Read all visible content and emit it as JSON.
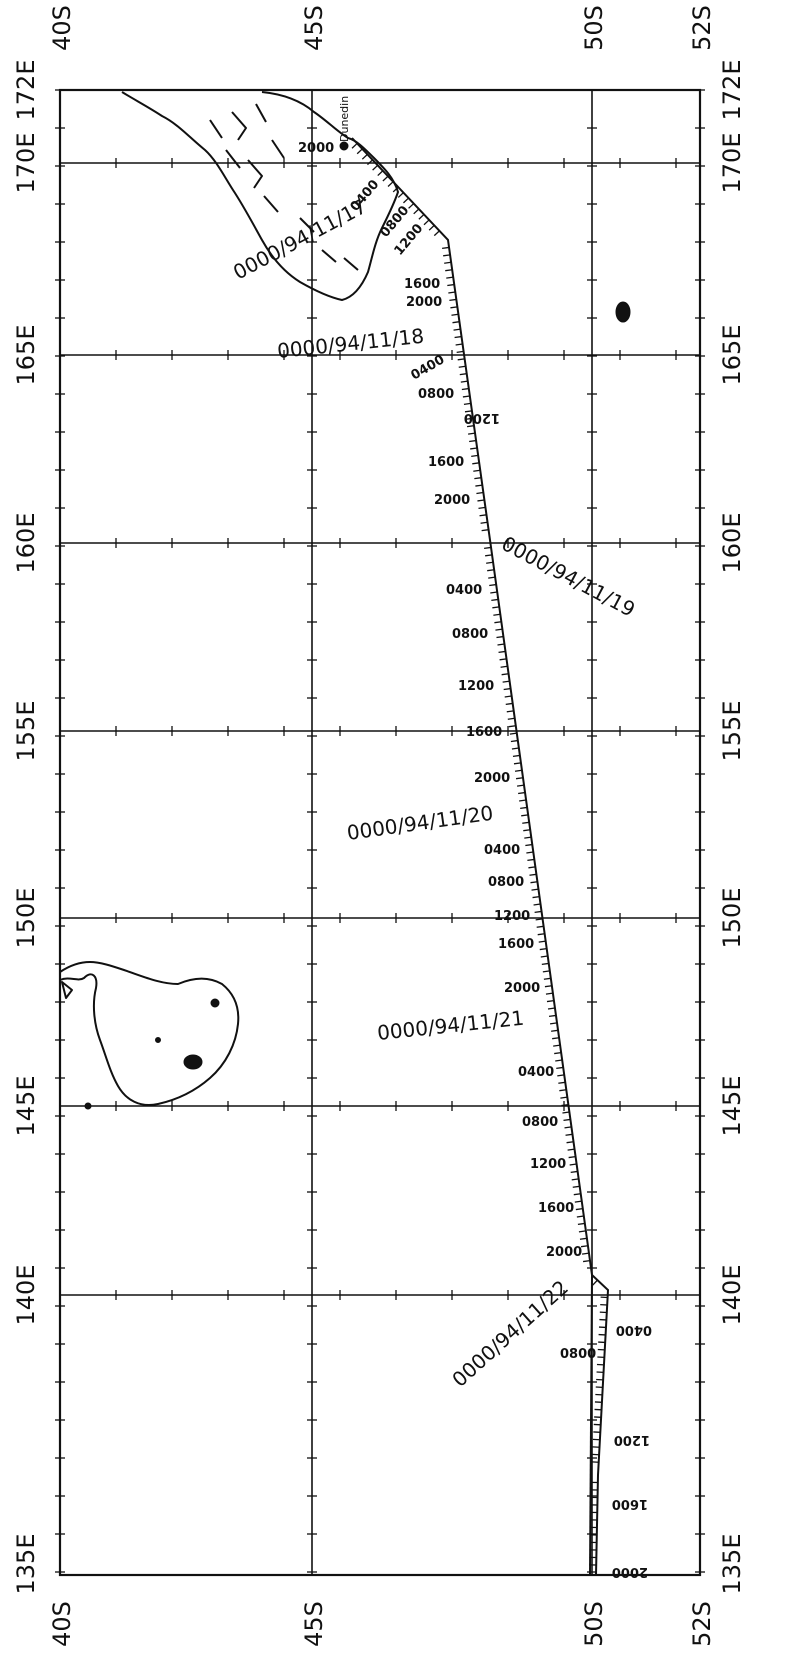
{
  "map": {
    "longitude_labels": {
      "top": [
        "172E",
        "170E",
        "165E",
        "160E",
        "155E",
        "150E",
        "145E",
        "140E",
        "135E"
      ],
      "bottom": [
        "172E",
        "170E",
        "165E",
        "160E",
        "155E",
        "150E",
        "145E",
        "140E",
        "135E"
      ]
    },
    "latitude_labels": {
      "left": [
        "40S",
        "45S",
        "50S",
        "52S"
      ],
      "right": [
        "40S",
        "45S",
        "50S",
        "52S"
      ]
    },
    "place": "Dunedin",
    "date_labels": [
      "0000/94/11/17",
      "0000/94/11/18",
      "0000/94/11/19",
      "0000/94/11/20",
      "0000/94/11/21",
      "0000/94/11/22"
    ],
    "hour_labels": {
      "d17": [
        "2000",
        "0400",
        "0800",
        "1200",
        "1600",
        "2000"
      ],
      "d18": [
        "0400",
        "0800",
        "1200",
        "1600",
        "2000"
      ],
      "d19": [
        "0400",
        "0800",
        "1200",
        "1600",
        "2000"
      ],
      "d20": [
        "0400",
        "0800",
        "1200",
        "1600",
        "2000"
      ],
      "d21": [
        "0400",
        "0800",
        "1200",
        "1600",
        "2000"
      ],
      "d22": [
        "0400",
        "0800",
        "1200",
        "1600",
        "2000"
      ]
    },
    "line_color": "#111111",
    "background": "#ffffff"
  }
}
